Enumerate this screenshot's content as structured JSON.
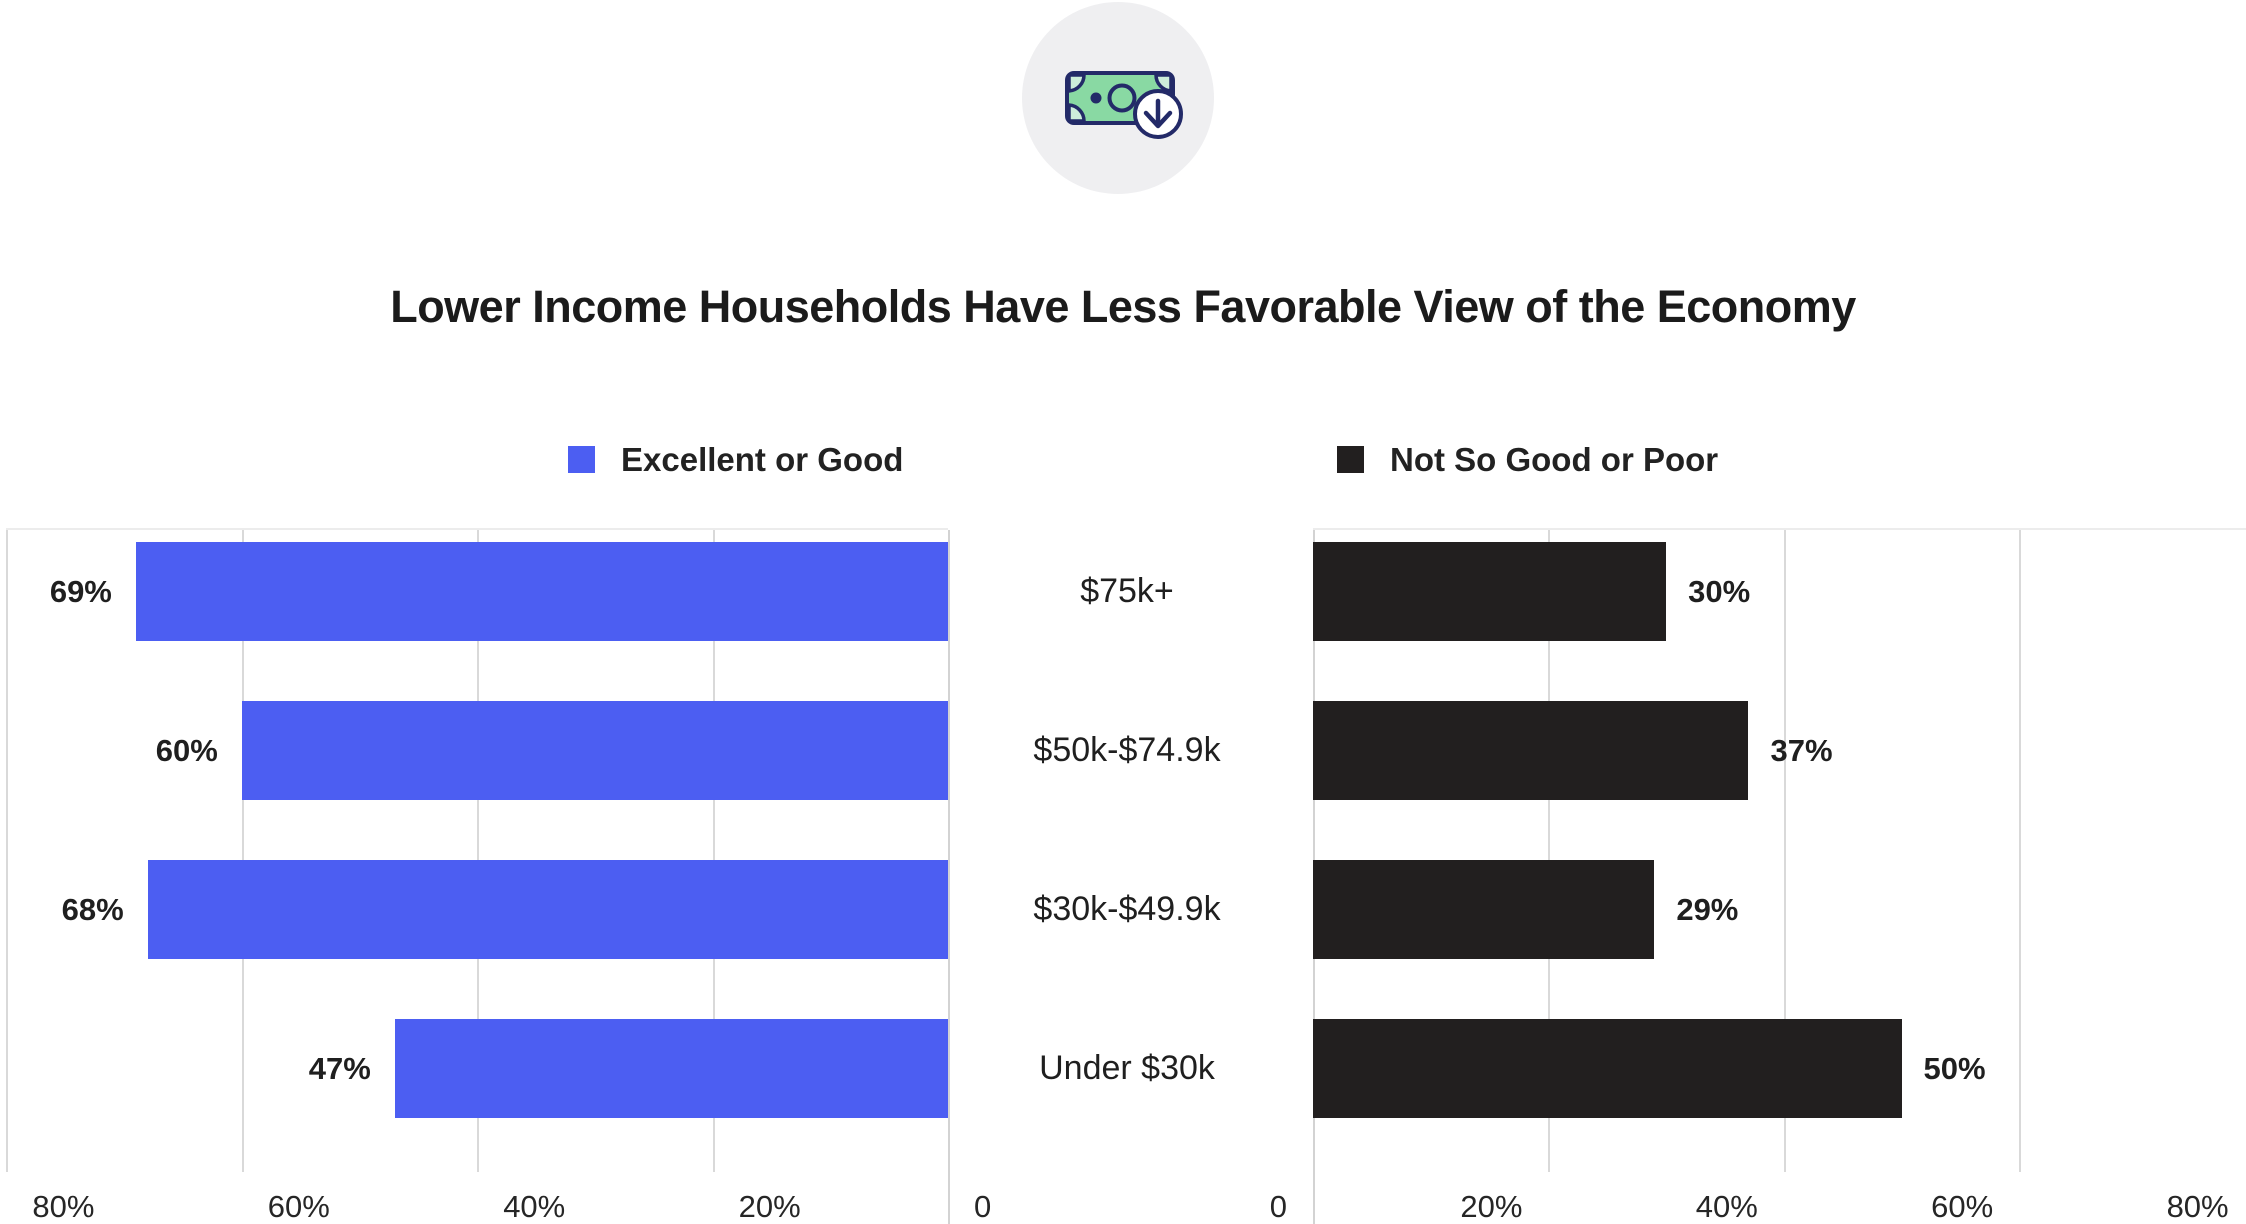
{
  "title": "Lower Income Households Have Less Favorable View of the Economy",
  "icon": {
    "name": "money-bill-download-icon",
    "circle_bg": "#efeff1",
    "bill_fill": "#89d9a3",
    "corner_fill": "#cdeeda",
    "outline": "#232a68",
    "badge_fill": "#ffffff"
  },
  "legend": [
    {
      "label": "Excellent or Good",
      "color": "#4c5ef2"
    },
    {
      "label": "Not So Good or Poor",
      "color": "#221f1f"
    }
  ],
  "chart_data": {
    "type": "bar",
    "orientation": "horizontal",
    "layout": "diverging-mirrored",
    "categories": [
      "$75k+",
      "$50k-$74.9k",
      "$30k-$49.9k",
      "Under $30k"
    ],
    "series": [
      {
        "name": "Excellent or Good",
        "color": "#4c5ef2",
        "direction": "right-to-left",
        "values": [
          69,
          60,
          68,
          47
        ]
      },
      {
        "name": "Not So Good or Poor",
        "color": "#221f1f",
        "direction": "left-to-right",
        "values": [
          30,
          37,
          29,
          50
        ]
      }
    ],
    "value_label_suffix": "%",
    "axis": {
      "max": 80,
      "grid": true,
      "left_ticks": [
        {
          "pct": 80,
          "label": "80%"
        },
        {
          "pct": 60,
          "label": "60%"
        },
        {
          "pct": 40,
          "label": "40%"
        },
        {
          "pct": 20,
          "label": "20%"
        },
        {
          "pct": 0,
          "label": "0"
        }
      ],
      "right_ticks": [
        {
          "pct": 0,
          "label": "0"
        },
        {
          "pct": 20,
          "label": "20%"
        },
        {
          "pct": 40,
          "label": "40%"
        },
        {
          "pct": 60,
          "label": "60%"
        },
        {
          "pct": 80,
          "label": "80%"
        }
      ]
    },
    "gridline_color": "#d9d9d9",
    "axisline_color": "#d3d3d3"
  }
}
